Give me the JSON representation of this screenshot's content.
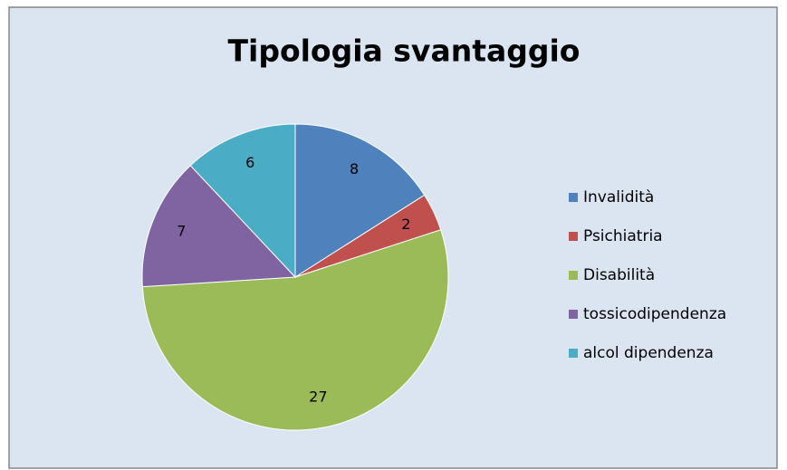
{
  "chart_data": {
    "type": "pie",
    "title": "Tipologia svantaggio",
    "categories": [
      "Invalidità",
      "Psichiatria",
      "Disabilità",
      "tossicodipendenza",
      "alcol dipendenza"
    ],
    "values": [
      8,
      2,
      27,
      7,
      6
    ],
    "colors": [
      "#4f81bd",
      "#c0504d",
      "#9bbb59",
      "#8064a2",
      "#4bacc6"
    ],
    "legend": "right"
  }
}
